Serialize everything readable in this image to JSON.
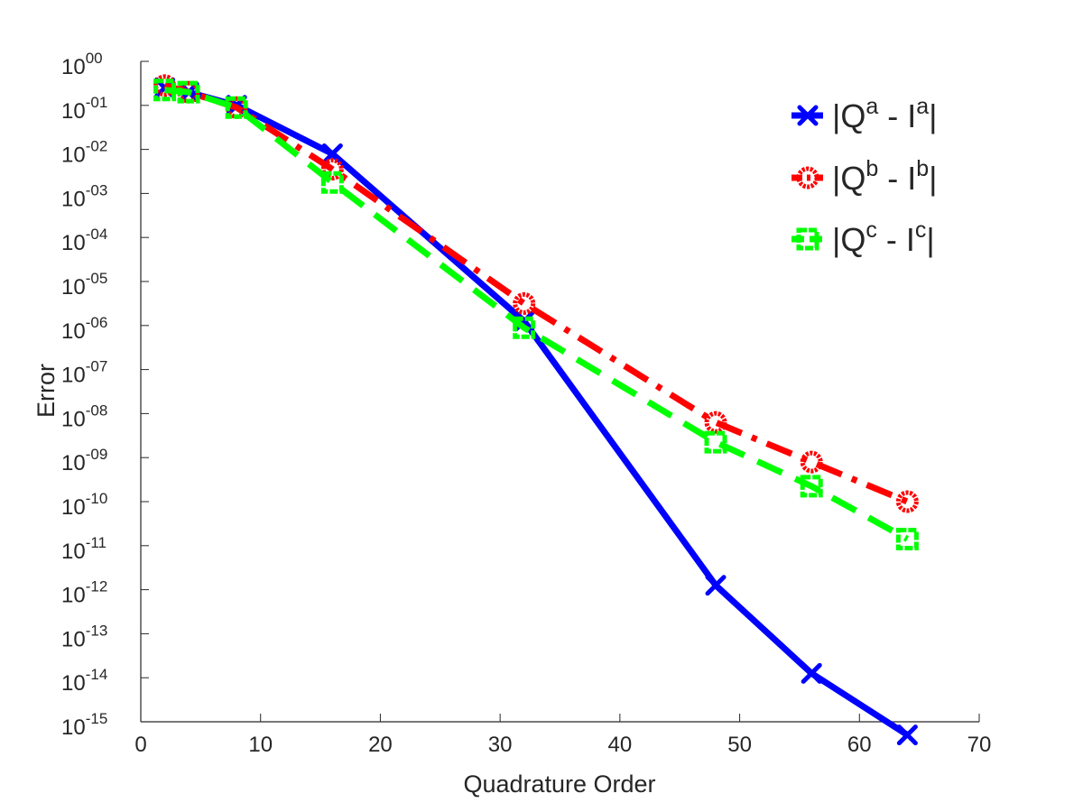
{
  "chart_data": {
    "type": "line",
    "title": "",
    "xlabel": "Quadrature Order",
    "ylabel": "Error",
    "xlim": [
      0,
      70
    ],
    "ylim_log10": [
      -15,
      0
    ],
    "y_scale": "log",
    "grid": false,
    "legend_position": "top-right",
    "x_ticks": [
      "0",
      "10",
      "20",
      "30",
      "40",
      "50",
      "60",
      "70"
    ],
    "y_tick_base": "10",
    "y_tick_exponents": [
      "-15",
      "-14",
      "-13",
      "-12",
      "-11",
      "-10",
      "-09",
      "-08",
      "-07",
      "-06",
      "-05",
      "-04",
      "-03",
      "-02",
      "-01",
      "00"
    ],
    "series": [
      {
        "name": "|Q^a - I^a|",
        "legend": {
          "pre": "|Q",
          "sup1": "a",
          "mid": " - I",
          "sup2": "a",
          "post": "|"
        },
        "color": "#0000ff",
        "line_style": "solid",
        "marker": "x",
        "x": [
          2,
          4,
          8,
          16,
          32,
          48,
          56,
          64
        ],
        "y_log10": [
          -0.6,
          -0.7,
          -1.0,
          -2.1,
          -5.9,
          -11.9,
          -13.9,
          -15.3
        ]
      },
      {
        "name": "|Q^b - I^b|",
        "legend": {
          "pre": "|Q",
          "sup1": "b",
          "mid": " - I",
          "sup2": "b",
          "post": "|"
        },
        "color": "#ff0000",
        "line_style": "dashdot",
        "marker": "o",
        "x": [
          2,
          4,
          8,
          16,
          32,
          48,
          56,
          64
        ],
        "y_log10": [
          -0.55,
          -0.7,
          -1.05,
          -2.45,
          -5.5,
          -8.2,
          -9.1,
          -10.0
        ]
      },
      {
        "name": "|Q^c - I^c|",
        "legend": {
          "pre": "|Q",
          "sup1": "c",
          "mid": " - I",
          "sup2": "c",
          "post": "|"
        },
        "color": "#00ff00",
        "line_style": "dashed",
        "marker": "s",
        "x": [
          2,
          4,
          8,
          16,
          32,
          48,
          56,
          64
        ],
        "y_log10": [
          -0.65,
          -0.7,
          -1.05,
          -2.75,
          -6.05,
          -8.65,
          -9.65,
          -10.85
        ]
      }
    ]
  }
}
